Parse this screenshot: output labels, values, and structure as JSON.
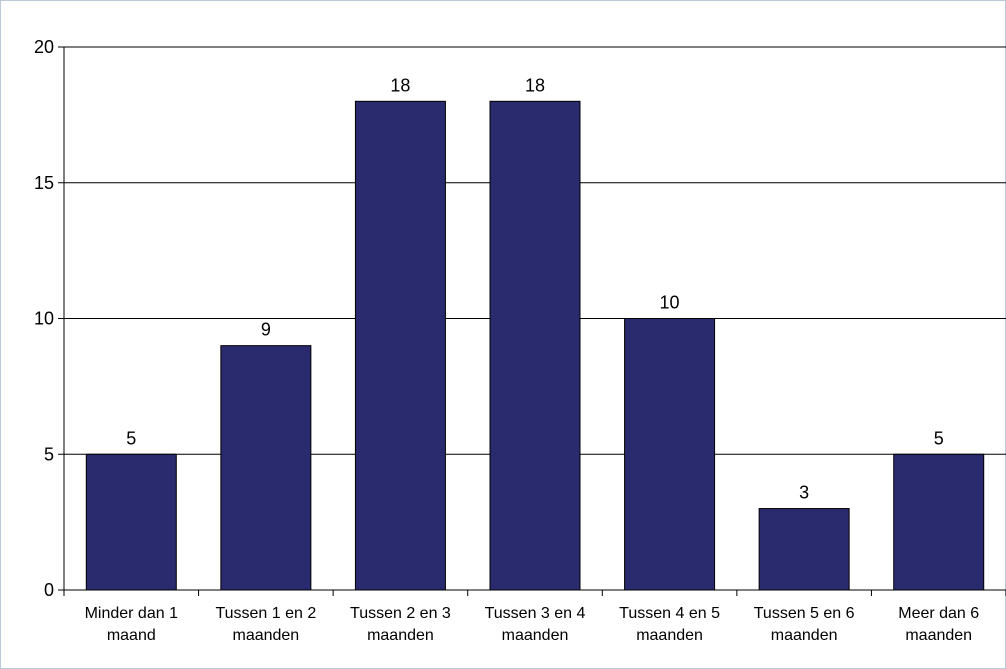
{
  "chart_data": {
    "type": "bar",
    "categories": [
      [
        "Minder dan 1",
        "maand"
      ],
      [
        "Tussen 1 en 2",
        "maanden"
      ],
      [
        "Tussen 2 en 3",
        "maanden"
      ],
      [
        "Tussen 3 en 4",
        "maanden"
      ],
      [
        "Tussen 4 en 5",
        "maanden"
      ],
      [
        "Tussen 5 en 6",
        "maanden"
      ],
      [
        "Meer dan 6",
        "maanden"
      ]
    ],
    "values": [
      5,
      9,
      18,
      18,
      10,
      3,
      5
    ],
    "ylim": [
      0,
      20
    ],
    "yticks": [
      0,
      5,
      10,
      15,
      20
    ],
    "grid": true,
    "legend": "none",
    "colors": {
      "bar": "#2a2a6e",
      "bar_stroke": "#000000",
      "grid": "#000000",
      "frame": "#b9c9d9"
    }
  }
}
